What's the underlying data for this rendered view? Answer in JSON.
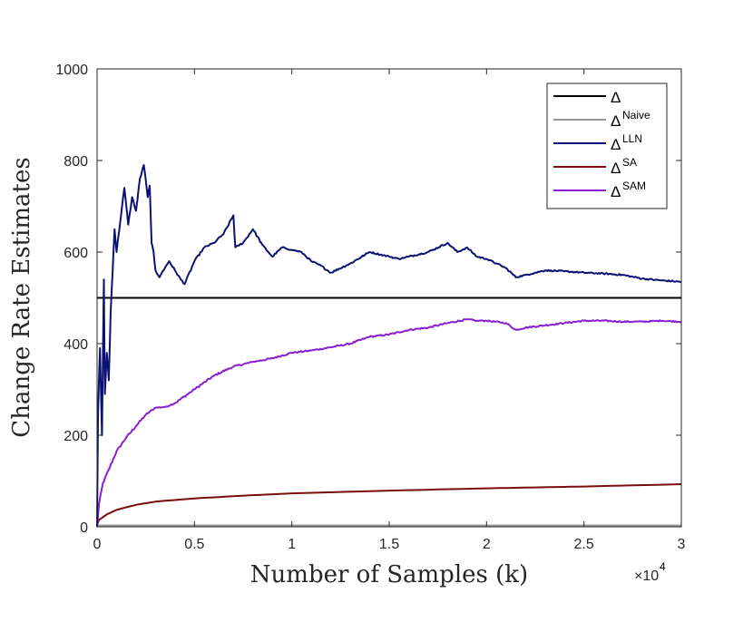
{
  "chart_data": {
    "type": "line",
    "xlabel": "Number of Samples (k)",
    "ylabel": "Change Rate Estimates",
    "x_multiplier_label": "×10",
    "x_multiplier_exp": "4",
    "xlim": [
      0,
      3
    ],
    "ylim": [
      0,
      1000
    ],
    "xticks": [
      0,
      0.5,
      1,
      1.5,
      2,
      2.5,
      3
    ],
    "xtick_labels": [
      "0",
      "0.5",
      "1",
      "1.5",
      "2",
      "2.5",
      "3"
    ],
    "yticks": [
      0,
      200,
      400,
      600,
      800,
      1000
    ],
    "ytick_labels": [
      "0",
      "200",
      "400",
      "600",
      "800",
      "1000"
    ],
    "legend_position": "top-right",
    "series": [
      {
        "name": "Δ",
        "base": "Δ",
        "sup": "",
        "color": "#000000",
        "style": "flat",
        "x": [
          0,
          3
        ],
        "y": [
          500,
          500
        ]
      },
      {
        "name": "Δ^Naive",
        "base": "Δ",
        "sup": "Naive",
        "color": "#999999",
        "style": "flat",
        "x": [
          0,
          3
        ],
        "y": [
          3,
          3
        ]
      },
      {
        "name": "Δ^LLN",
        "base": "Δ",
        "sup": "LLN",
        "color": "#0a1172",
        "style": "noisy",
        "x": [
          0,
          0.005,
          0.015,
          0.025,
          0.035,
          0.04,
          0.05,
          0.06,
          0.07,
          0.08,
          0.09,
          0.1,
          0.12,
          0.14,
          0.16,
          0.18,
          0.2,
          0.22,
          0.24,
          0.26,
          0.27,
          0.28,
          0.29,
          0.3,
          0.32,
          0.34,
          0.37,
          0.4,
          0.43,
          0.45,
          0.5,
          0.55,
          0.6,
          0.65,
          0.7,
          0.71,
          0.75,
          0.8,
          0.85,
          0.9,
          0.95,
          1.0,
          1.05,
          1.1,
          1.15,
          1.2,
          1.3,
          1.4,
          1.5,
          1.55,
          1.6,
          1.7,
          1.8,
          1.85,
          1.9,
          1.95,
          2.0,
          2.05,
          2.1,
          2.15,
          2.2,
          2.3,
          2.4,
          2.5,
          2.6,
          2.7,
          2.8,
          2.9,
          3.0
        ],
        "y": [
          0,
          250,
          390,
          200,
          540,
          290,
          380,
          320,
          470,
          560,
          650,
          600,
          670,
          740,
          660,
          720,
          690,
          760,
          790,
          720,
          745,
          620,
          600,
          560,
          545,
          560,
          580,
          560,
          540,
          530,
          580,
          610,
          620,
          640,
          680,
          610,
          620,
          650,
          615,
          590,
          610,
          605,
          600,
          580,
          570,
          555,
          575,
          600,
          590,
          585,
          590,
          600,
          620,
          600,
          610,
          590,
          585,
          575,
          565,
          545,
          550,
          560,
          558,
          555,
          553,
          550,
          542,
          538,
          535
        ]
      },
      {
        "name": "Δ^SA",
        "base": "Δ",
        "sup": "SA",
        "color": "#7b0c0c",
        "style": "smooth",
        "x": [
          0,
          0.01,
          0.05,
          0.1,
          0.2,
          0.3,
          0.5,
          0.75,
          1.0,
          1.5,
          2.0,
          2.5,
          3.0
        ],
        "y": [
          5,
          15,
          27,
          37,
          48,
          55,
          62,
          68,
          73,
          79,
          84,
          88,
          93
        ]
      },
      {
        "name": "Δ^SAM",
        "base": "Δ",
        "sup": "SAM",
        "color": "#8a1fcf",
        "style": "noisy",
        "x": [
          0,
          0.01,
          0.03,
          0.06,
          0.1,
          0.15,
          0.2,
          0.25,
          0.3,
          0.35,
          0.4,
          0.5,
          0.6,
          0.7,
          0.8,
          0.9,
          1.0,
          1.1,
          1.2,
          1.3,
          1.4,
          1.5,
          1.6,
          1.7,
          1.8,
          1.9,
          1.95,
          2.0,
          2.1,
          2.15,
          2.2,
          2.3,
          2.4,
          2.5,
          2.6,
          2.7,
          2.8,
          2.9,
          3.0
        ],
        "y": [
          0,
          50,
          95,
          125,
          165,
          195,
          220,
          245,
          260,
          262,
          270,
          300,
          330,
          350,
          360,
          368,
          380,
          385,
          392,
          400,
          415,
          420,
          430,
          435,
          445,
          453,
          450,
          450,
          445,
          430,
          435,
          440,
          445,
          450,
          450,
          448,
          448,
          450,
          448
        ]
      }
    ]
  }
}
